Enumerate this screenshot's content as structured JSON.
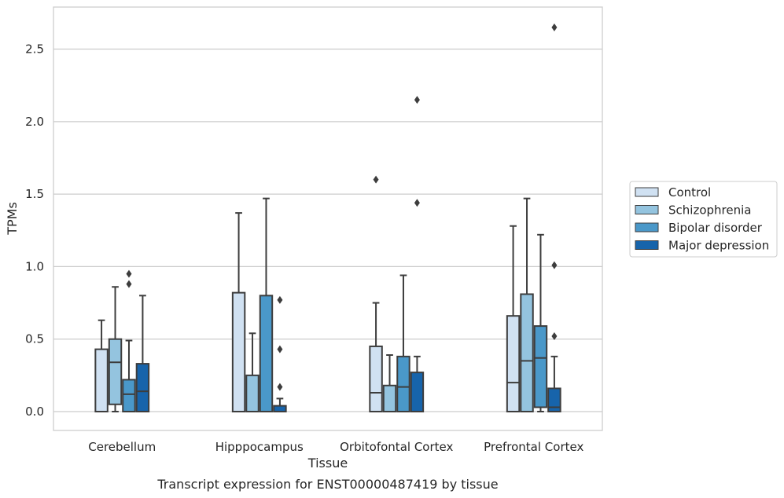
{
  "caption": "Transcript expression for ENST00000487419 by tissue",
  "chart_data": {
    "type": "box",
    "xlabel": "Tissue",
    "ylabel": "TPMs",
    "ylim": [
      -0.13,
      2.79
    ],
    "yticks": [
      0.0,
      0.5,
      1.0,
      1.5,
      2.0,
      2.5
    ],
    "ytick_labels": [
      "0.0",
      "0.5",
      "1.0",
      "1.5",
      "2.0",
      "2.5"
    ],
    "grid": true,
    "legend_position": "right",
    "categories": [
      "Cerebellum",
      "Hipppocampus",
      "Orbitofontal Cortex",
      "Prefrontal Cortex"
    ],
    "series": [
      {
        "name": "Control",
        "color": "#d0e1f2",
        "boxes": [
          {
            "whislo": 0.0,
            "q1": 0.0,
            "med": 0.0,
            "q3": 0.43,
            "whishi": 0.63,
            "fliers": []
          },
          {
            "whislo": 0.0,
            "q1": 0.0,
            "med": 0.0,
            "q3": 0.82,
            "whishi": 1.37,
            "fliers": []
          },
          {
            "whislo": 0.0,
            "q1": 0.0,
            "med": 0.13,
            "q3": 0.45,
            "whishi": 0.75,
            "fliers": [
              1.6
            ]
          },
          {
            "whislo": 0.0,
            "q1": 0.0,
            "med": 0.2,
            "q3": 0.66,
            "whishi": 1.28,
            "fliers": []
          }
        ]
      },
      {
        "name": "Schizophrenia",
        "color": "#94c4df",
        "boxes": [
          {
            "whislo": 0.0,
            "q1": 0.05,
            "med": 0.34,
            "q3": 0.5,
            "whishi": 0.86,
            "fliers": []
          },
          {
            "whislo": 0.0,
            "q1": 0.0,
            "med": 0.0,
            "q3": 0.25,
            "whishi": 0.54,
            "fliers": []
          },
          {
            "whislo": 0.0,
            "q1": 0.0,
            "med": 0.0,
            "q3": 0.18,
            "whishi": 0.39,
            "fliers": []
          },
          {
            "whislo": 0.0,
            "q1": 0.0,
            "med": 0.35,
            "q3": 0.81,
            "whishi": 1.47,
            "fliers": []
          }
        ]
      },
      {
        "name": "Bipolar disorder",
        "color": "#4a98c9",
        "boxes": [
          {
            "whislo": 0.0,
            "q1": 0.0,
            "med": 0.12,
            "q3": 0.22,
            "whishi": 0.49,
            "fliers": [
              0.88,
              0.95
            ]
          },
          {
            "whislo": 0.0,
            "q1": 0.0,
            "med": 0.0,
            "q3": 0.8,
            "whishi": 1.47,
            "fliers": []
          },
          {
            "whislo": 0.0,
            "q1": 0.0,
            "med": 0.17,
            "q3": 0.38,
            "whishi": 0.94,
            "fliers": []
          },
          {
            "whislo": 0.0,
            "q1": 0.03,
            "med": 0.37,
            "q3": 0.59,
            "whishi": 1.22,
            "fliers": []
          }
        ]
      },
      {
        "name": "Major depression",
        "color": "#1764ab",
        "boxes": [
          {
            "whislo": 0.0,
            "q1": 0.0,
            "med": 0.14,
            "q3": 0.33,
            "whishi": 0.8,
            "fliers": []
          },
          {
            "whislo": 0.0,
            "q1": 0.0,
            "med": 0.0,
            "q3": 0.04,
            "whishi": 0.09,
            "fliers": [
              0.17,
              0.43,
              0.77
            ]
          },
          {
            "whislo": 0.0,
            "q1": 0.0,
            "med": 0.0,
            "q3": 0.27,
            "whishi": 0.38,
            "fliers": [
              1.44,
              2.15
            ]
          },
          {
            "whislo": 0.0,
            "q1": 0.0,
            "med": 0.03,
            "q3": 0.16,
            "whishi": 0.38,
            "fliers": [
              0.52,
              1.01,
              2.65
            ]
          }
        ]
      }
    ]
  }
}
